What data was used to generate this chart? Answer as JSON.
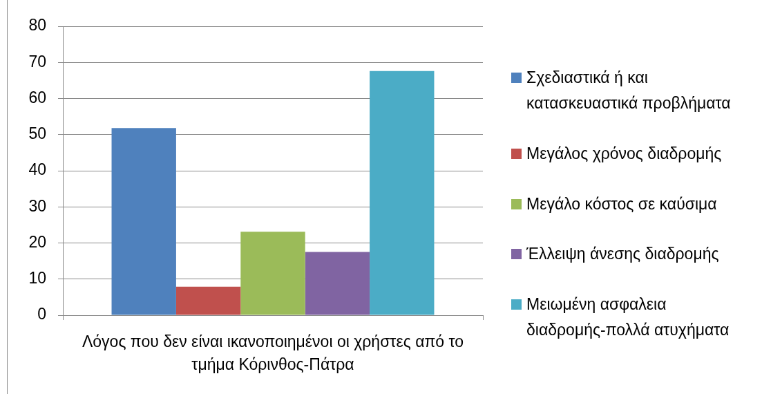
{
  "chart_data": {
    "type": "bar",
    "categories": [
      "Λόγος που δεν είναι ικανοποιημένοι οι χρήστες από το τμήμα Κόρινθος-Πάτρα"
    ],
    "series": [
      {
        "name": "Σχεδιαστικά ή και κατασκευαστικά προβλήματα",
        "color": "#4f81bd",
        "values": [
          51.8
        ]
      },
      {
        "name": "Μεγάλος χρόνος διαδρομής",
        "color": "#c0504d",
        "values": [
          7.9
        ]
      },
      {
        "name": "Μεγάλο κόστος σε καύσιμα",
        "color": "#9bbb59",
        "values": [
          23.1
        ]
      },
      {
        "name": "Έλλειψη άνεσης διαδρομής",
        "color": "#8064a2",
        "values": [
          17.5
        ]
      },
      {
        "name": "Μειωμένη ασφαλεια διαδρομής-πολλά ατυχήματα",
        "color": "#4bacc6",
        "values": [
          67.6
        ]
      }
    ],
    "ylim": [
      0,
      80
    ],
    "yticks": [
      0,
      10,
      20,
      30,
      40,
      50,
      60,
      70,
      80
    ],
    "grid": "y",
    "legend": "right"
  }
}
